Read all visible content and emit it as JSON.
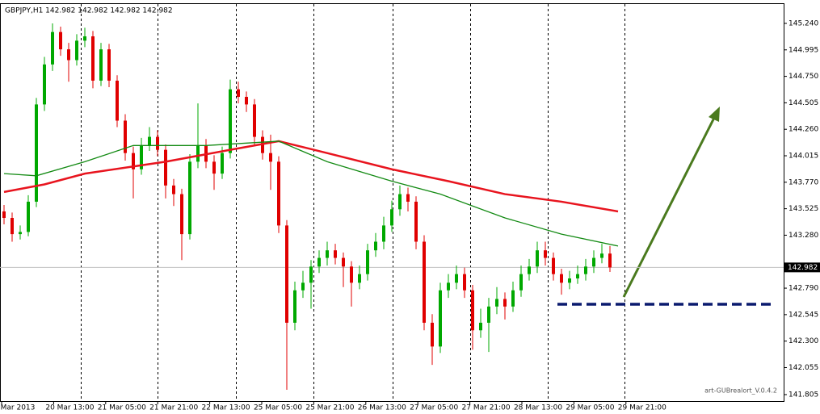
{
  "chart_data": {
    "type": "candlestick",
    "title": "GBPJPY,H1  142.982 142.982 142.982 142.982",
    "watermark": "art-GUBrealort_V.0.4.2",
    "last_price": 142.982,
    "up_color": "#00a800",
    "down_color": "#e00000",
    "ylim": [
      141.745,
      145.419
    ],
    "yticks": [
      {
        "value": 145.24,
        "label": "145.240"
      },
      144.995,
      {
        "value": 144.75,
        "label": "144.750"
      },
      144.505,
      {
        "value": 144.26,
        "label": "144.260"
      },
      144.015,
      {
        "value": 143.77,
        "label": "143.770"
      },
      143.525,
      {
        "value": 143.28,
        "label": "143.280"
      },
      {
        "value": 142.79,
        "label": "142.790"
      },
      142.545,
      {
        "value": 142.3,
        "label": "142.300"
      },
      142.055,
      141.805
    ],
    "xtick_labels": [
      "Mar 2013",
      "20 Mar 13:00",
      "21 Mar 05:00",
      "21 Mar 21:00",
      "22 Mar 13:00",
      "25 Mar 05:00",
      "25 Mar 21:00",
      "26 Mar 13:00",
      "27 Mar 05:00",
      "27 Mar 21:00",
      "28 Mar 13:00",
      "29 Mar 05:00",
      "29 Mar 21:00"
    ],
    "candles": [
      [
        143.5,
        143.56,
        143.38,
        143.44
      ],
      [
        143.44,
        143.49,
        143.22,
        143.29
      ],
      [
        143.29,
        143.37,
        143.24,
        143.31
      ],
      [
        143.31,
        143.65,
        143.27,
        143.59
      ],
      [
        143.59,
        144.55,
        143.54,
        144.49
      ],
      [
        144.49,
        144.93,
        144.43,
        144.86
      ],
      [
        144.86,
        145.24,
        144.8,
        145.16
      ],
      [
        145.16,
        145.21,
        144.94,
        145.0
      ],
      [
        145.0,
        145.06,
        144.7,
        144.9
      ],
      [
        144.9,
        145.14,
        144.85,
        145.08
      ],
      [
        145.08,
        145.2,
        145.02,
        145.12
      ],
      [
        145.12,
        145.17,
        144.64,
        144.71
      ],
      [
        144.71,
        145.06,
        144.66,
        145.0
      ],
      [
        145.0,
        145.05,
        144.65,
        144.71
      ],
      [
        144.71,
        144.76,
        144.28,
        144.34
      ],
      [
        144.34,
        144.4,
        143.97,
        144.04
      ],
      [
        144.04,
        144.1,
        143.62,
        143.89
      ],
      [
        143.89,
        144.18,
        143.84,
        144.11
      ],
      [
        144.11,
        144.28,
        144.06,
        144.19
      ],
      [
        144.19,
        144.25,
        144.01,
        144.07
      ],
      [
        144.07,
        144.12,
        143.62,
        143.74
      ],
      [
        143.74,
        143.8,
        143.55,
        143.66
      ],
      [
        143.66,
        143.71,
        143.05,
        143.29
      ],
      [
        143.29,
        144.03,
        143.24,
        143.96
      ],
      [
        143.96,
        144.5,
        143.9,
        144.11
      ],
      [
        144.11,
        144.17,
        143.9,
        143.96
      ],
      [
        143.96,
        144.02,
        143.7,
        143.85
      ],
      [
        143.85,
        144.1,
        143.8,
        144.04
      ],
      [
        144.04,
        144.72,
        143.99,
        144.63
      ],
      [
        144.63,
        144.7,
        144.5,
        144.56
      ],
      [
        144.56,
        144.61,
        144.42,
        144.49
      ],
      [
        144.49,
        144.54,
        144.12,
        144.19
      ],
      [
        144.19,
        144.25,
        143.98,
        144.04
      ],
      [
        144.04,
        144.21,
        143.7,
        143.96
      ],
      [
        143.96,
        144.01,
        143.3,
        143.37
      ],
      [
        143.37,
        143.42,
        141.85,
        142.47
      ],
      [
        142.47,
        142.85,
        142.4,
        142.77
      ],
      [
        142.77,
        142.95,
        142.7,
        142.84
      ],
      [
        142.84,
        143.05,
        142.6,
        142.99
      ],
      [
        142.99,
        143.14,
        142.93,
        143.07
      ],
      [
        143.07,
        143.22,
        143.0,
        143.14
      ],
      [
        143.14,
        143.2,
        143.01,
        143.07
      ],
      [
        143.07,
        143.12,
        142.8,
        142.99
      ],
      [
        142.99,
        143.04,
        142.62,
        142.84
      ],
      [
        142.84,
        143.0,
        142.78,
        142.92
      ],
      [
        142.92,
        143.2,
        142.86,
        143.14
      ],
      [
        143.14,
        143.3,
        143.08,
        143.22
      ],
      [
        143.22,
        143.45,
        143.15,
        143.37
      ],
      [
        143.37,
        143.6,
        143.31,
        143.52
      ],
      [
        143.52,
        143.74,
        143.46,
        143.66
      ],
      [
        143.66,
        143.72,
        143.5,
        143.59
      ],
      [
        143.59,
        143.64,
        143.15,
        143.22
      ],
      [
        143.22,
        143.28,
        142.4,
        142.47
      ],
      [
        142.47,
        142.55,
        142.08,
        142.25
      ],
      [
        142.25,
        142.84,
        142.19,
        142.77
      ],
      [
        142.77,
        142.92,
        142.7,
        142.84
      ],
      [
        142.84,
        143.0,
        142.78,
        142.92
      ],
      [
        142.92,
        142.98,
        142.7,
        142.77
      ],
      [
        142.77,
        142.82,
        142.22,
        142.4
      ],
      [
        142.4,
        142.6,
        142.33,
        142.47
      ],
      [
        142.47,
        142.7,
        142.2,
        142.62
      ],
      [
        142.62,
        142.8,
        142.55,
        142.69
      ],
      [
        142.69,
        142.75,
        142.5,
        142.62
      ],
      [
        142.62,
        142.85,
        142.57,
        142.77
      ],
      [
        142.77,
        143.0,
        142.71,
        142.92
      ],
      [
        142.92,
        143.06,
        142.86,
        142.99
      ],
      [
        142.99,
        143.22,
        142.93,
        143.14
      ],
      [
        143.14,
        143.22,
        143.0,
        143.07
      ],
      [
        143.07,
        143.12,
        142.86,
        142.92
      ],
      [
        142.92,
        142.97,
        142.73,
        142.84
      ],
      [
        142.84,
        142.95,
        142.78,
        142.88
      ],
      [
        142.88,
        143.0,
        142.83,
        142.92
      ],
      [
        142.92,
        143.06,
        142.86,
        142.99
      ],
      [
        142.99,
        143.14,
        142.93,
        143.07
      ],
      [
        143.07,
        143.2,
        143.02,
        143.11
      ],
      [
        143.11,
        143.18,
        142.94,
        142.982
      ]
    ],
    "series": [
      {
        "color": "#e8141e",
        "x": [
          0,
          5,
          10,
          20,
          28,
          34,
          40,
          48,
          55,
          62,
          69,
          76
        ],
        "values": [
          143.68,
          143.75,
          143.85,
          143.96,
          144.07,
          144.15,
          144.04,
          143.89,
          143.78,
          143.66,
          143.59,
          143.5
        ]
      },
      {
        "color": "#138a13",
        "x": [
          0,
          4,
          10,
          16,
          25,
          34,
          40,
          48,
          54,
          62,
          69,
          76
        ],
        "values": [
          143.85,
          143.83,
          143.96,
          144.11,
          144.11,
          144.15,
          143.96,
          143.78,
          143.66,
          143.44,
          143.29,
          143.18
        ]
      }
    ]
  }
}
